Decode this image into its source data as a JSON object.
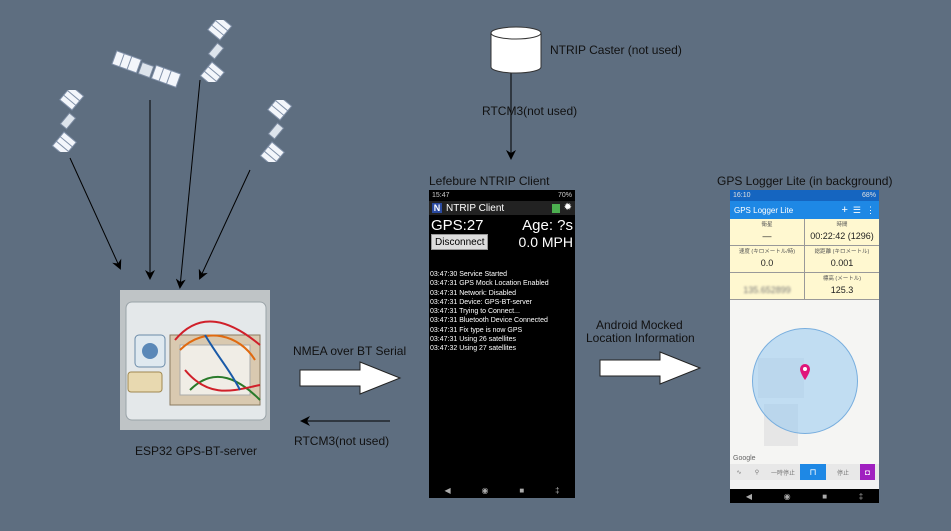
{
  "labels": {
    "ntrip_caster": "NTRIP Caster (not used)",
    "rtcm_top": "RTCM3(not used)",
    "lefebure_title": "Lefebure NTRIP  Client",
    "gps_logger_title": "GPS Logger Lite (in background)",
    "nmea": "NMEA over BT Serial",
    "rtcm_bottom": "RTCM3(not used)",
    "android_mocked_1": "Android Mocked",
    "android_mocked_2": "Location Information",
    "esp32": "ESP32 GPS-BT-server"
  },
  "ntrip_phone": {
    "status_time": "15:47",
    "status_right": "70%",
    "app_title": "NTRIP Client",
    "app_icon": "N",
    "gps": "GPS:27",
    "age": "Age: ?s",
    "disconnect": "Disconnect",
    "speed": "0.0 MPH",
    "log": [
      "03:47:30 Service Started",
      "03:47:31 GPS Mock Location Enabled",
      "03:47:31 Network: Disabled",
      "03:47:31 Device: GPS-BT-server",
      "03:47:31 Trying to Connect...",
      "03:47:31 Bluetooth Device Connected",
      "03:47:31 Fix type is now GPS",
      "03:47:31 Using 26 satellites",
      "03:47:32 Using 27 satellites"
    ]
  },
  "logger_phone": {
    "status_time": "16:10",
    "status_right": "68%",
    "app_title": "GPS Logger Lite",
    "cells": [
      {
        "label": "衛星",
        "value": "—"
      },
      {
        "label": "時間",
        "value": "00:22:42 (1296)"
      },
      {
        "label": "速度 (キロメートル/時)",
        "value": "0.0"
      },
      {
        "label": "総距離 (キロメートル)",
        "value": "0.001"
      },
      {
        "label": "",
        "value": "135.652899"
      },
      {
        "label": "標高 (メートル)",
        "value": "125.3"
      }
    ],
    "map_brand": "Google",
    "bottom_tabs": [
      "一時停止",
      "停止"
    ]
  },
  "colors": {
    "background": "#5e6e80",
    "arrow_fill": "#ffffff",
    "pin": "#e0157a",
    "logger_cell": "#fff8d0",
    "logger_header": "#1e88e5",
    "accuracy_circle": "#b3d7f5"
  }
}
